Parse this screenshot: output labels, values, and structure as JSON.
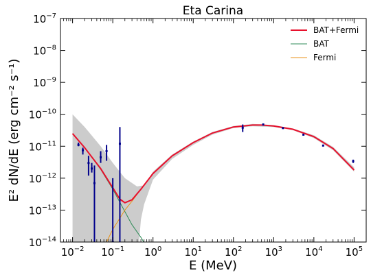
{
  "chart_data": {
    "type": "line",
    "title": "Eta Carina",
    "xlabel": "E (MeV)",
    "ylabel": "E² dN/dE (erg cm⁻² s⁻¹)",
    "xscale": "log",
    "yscale": "log",
    "xlim": [
      0.005,
      200000
    ],
    "ylim": [
      1e-14,
      1e-07
    ],
    "x_ticks": [
      {
        "value": 0.01,
        "base": "10",
        "exp": "−2"
      },
      {
        "value": 0.1,
        "base": "10",
        "exp": "−1"
      },
      {
        "value": 1,
        "base": "10",
        "exp": "0"
      },
      {
        "value": 10,
        "base": "10",
        "exp": "1"
      },
      {
        "value": 100,
        "base": "10",
        "exp": "2"
      },
      {
        "value": 1000,
        "base": "10",
        "exp": "3"
      },
      {
        "value": 10000,
        "base": "10",
        "exp": "4"
      },
      {
        "value": 100000,
        "base": "10",
        "exp": "5"
      }
    ],
    "y_ticks": [
      {
        "value": 1e-14,
        "base": "10",
        "exp": "−14"
      },
      {
        "value": 1e-13,
        "base": "10",
        "exp": "−13"
      },
      {
        "value": 1e-12,
        "base": "10",
        "exp": "−12"
      },
      {
        "value": 1e-11,
        "base": "10",
        "exp": "−11"
      },
      {
        "value": 1e-10,
        "base": "10",
        "exp": "−10"
      },
      {
        "value": 1e-09,
        "base": "10",
        "exp": "−9"
      },
      {
        "value": 1e-08,
        "base": "10",
        "exp": "−8"
      },
      {
        "value": 1e-07,
        "base": "10",
        "exp": "−7"
      }
    ],
    "legend_position": "top-right",
    "series": [
      {
        "name": "BAT+Fermi",
        "color": "#e8112d",
        "x": [
          0.01,
          0.02,
          0.05,
          0.1,
          0.15,
          0.2,
          0.3,
          0.5,
          1,
          3,
          10,
          30,
          100,
          300,
          500,
          1000,
          3000,
          10000,
          30000,
          100000
        ],
        "y": [
          2.5e-11,
          9e-12,
          2e-12,
          5e-13,
          2.2e-13,
          1.7e-13,
          2.1e-13,
          4.5e-13,
          1.4e-12,
          5e-12,
          1.3e-11,
          2.6e-11,
          4e-11,
          4.6e-11,
          4.6e-11,
          4.3e-11,
          3.4e-11,
          2e-11,
          8.5e-12,
          1.8e-12
        ]
      },
      {
        "name": "BAT",
        "color": "#2e8b57",
        "x": [
          0.01,
          0.02,
          0.05,
          0.1,
          0.2,
          0.3,
          0.5,
          0.7
        ],
        "y": [
          2.5e-11,
          9e-12,
          1.9e-12,
          4.5e-13,
          9e-14,
          3.5e-14,
          1.4e-14,
          7e-15
        ]
      },
      {
        "name": "Fermi",
        "color": "#e8921a",
        "x": [
          0.07,
          0.1,
          0.2,
          0.3,
          0.5,
          1,
          3,
          10,
          30,
          100,
          300,
          500,
          1000,
          3000,
          10000,
          30000,
          100000
        ],
        "y": [
          1e-14,
          2.5e-14,
          1e-13,
          1.9e-13,
          4.5e-13,
          1.4e-12,
          5e-12,
          1.3e-11,
          2.6e-11,
          4e-11,
          4.6e-11,
          4.6e-11,
          4.3e-11,
          3.4e-11,
          2e-11,
          8.5e-12,
          1.8e-12
        ]
      }
    ],
    "confidence_band": {
      "color": "#cccccc",
      "upper": [
        [
          0.01,
          1e-10
        ],
        [
          0.02,
          4e-11
        ],
        [
          0.05,
          1e-11
        ],
        [
          0.1,
          3e-12
        ],
        [
          0.2,
          1e-12
        ],
        [
          0.4,
          5.5e-13
        ],
        [
          0.6,
          6e-13
        ],
        [
          1,
          1.6e-12
        ],
        [
          3,
          5.5e-12
        ],
        [
          10,
          1.4e-11
        ],
        [
          30,
          2.8e-11
        ],
        [
          100,
          4.3e-11
        ],
        [
          300,
          5e-11
        ],
        [
          1000,
          4.6e-11
        ],
        [
          3000,
          3.6e-11
        ],
        [
          10000,
          2.2e-11
        ],
        [
          30000,
          9.5e-12
        ],
        [
          100000,
          2.2e-12
        ]
      ],
      "lower": [
        [
          100000,
          1.6e-12
        ],
        [
          30000,
          7.5e-12
        ],
        [
          10000,
          1.8e-11
        ],
        [
          3000,
          3.2e-11
        ],
        [
          1000,
          4e-11
        ],
        [
          300,
          4.2e-11
        ],
        [
          100,
          3.7e-11
        ],
        [
          30,
          2.3e-11
        ],
        [
          10,
          1.1e-11
        ],
        [
          3,
          4e-12
        ],
        [
          1,
          9e-13
        ],
        [
          0.6,
          1.5e-13
        ],
        [
          0.5,
          5e-14
        ],
        [
          0.45,
          1e-14
        ],
        [
          0.01,
          1e-14
        ]
      ]
    },
    "data_points": {
      "color": "#00008b",
      "points": [
        {
          "x": 0.014,
          "y": 1.1e-11,
          "ylo": 1e-11,
          "yhi": 1.3e-11
        },
        {
          "x": 0.018,
          "y": 7.5e-12,
          "ylo": 5.5e-12,
          "yhi": 9e-12
        },
        {
          "x": 0.025,
          "y": 3e-12,
          "ylo": 1.2e-12,
          "yhi": 5e-12
        },
        {
          "x": 0.03,
          "y": 2e-12,
          "ylo": 1.5e-12,
          "yhi": 3e-12
        },
        {
          "x": 0.035,
          "y": 7e-13,
          "ylo": 1e-14,
          "yhi": 2.5e-12
        },
        {
          "x": 0.05,
          "y": 4.5e-12,
          "ylo": 3e-12,
          "yhi": 7e-12
        },
        {
          "x": 0.07,
          "y": 7e-12,
          "ylo": 3.5e-12,
          "yhi": 1.1e-11
        },
        {
          "x": 0.1,
          "y": 1e-14,
          "ylo": 1e-14,
          "yhi": 1e-12
        },
        {
          "x": 0.15,
          "y": 1.2e-11,
          "ylo": 1e-14,
          "yhi": 4e-11
        },
        {
          "x": 170,
          "y": 3.8e-11,
          "ylo": 2.8e-11,
          "yhi": 4.8e-11
        },
        {
          "x": 550,
          "y": 4.8e-11,
          "ylo": 4.5e-11,
          "yhi": 5.1e-11
        },
        {
          "x": 1700,
          "y": 3.7e-11,
          "ylo": 3.5e-11,
          "yhi": 3.9e-11
        },
        {
          "x": 5500,
          "y": 2.3e-11,
          "ylo": 2.2e-11,
          "yhi": 2.4e-11
        },
        {
          "x": 17000,
          "y": 1.05e-11,
          "ylo": 1e-11,
          "yhi": 1.1e-11
        },
        {
          "x": 95000,
          "y": 3.4e-12,
          "ylo": 3e-12,
          "yhi": 3.8e-12
        }
      ]
    }
  }
}
